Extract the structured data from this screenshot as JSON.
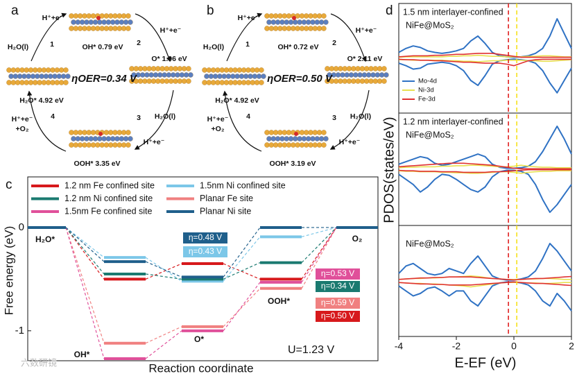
{
  "diagrams": [
    {
      "panel": "a",
      "overpotential": "ηOER=0.34 V",
      "states": [
        "OH* 0.79 eV",
        "O* 1.96 eV",
        "OOH* 3.35 eV",
        "H₂O* 4.92 eV"
      ],
      "steps": [
        "1",
        "2",
        "3",
        "4"
      ],
      "species": [
        "H⁺+e⁻",
        "H₂O(l)",
        "H⁺+e⁻",
        "H₂O(l)",
        "H⁺+e⁻",
        "H⁺+e⁻",
        "+O₂"
      ]
    },
    {
      "panel": "b",
      "overpotential": "ηOER=0.50 V",
      "states": [
        "OH* 0.72 eV",
        "O* 2.11 eV",
        "OOH* 3.19 eV",
        "H₂O* 4.92 eV"
      ],
      "steps": [
        "1",
        "2",
        "3",
        "4"
      ],
      "species": [
        "H⁺+e⁻",
        "H₂O(l)",
        "H⁺+e⁻",
        "H₂O(l)",
        "H⁺+e⁻",
        "H⁺+e⁻",
        "+O₂"
      ]
    }
  ],
  "chart_data": [
    {
      "type": "energy",
      "panel": "c",
      "ylabel": "Free energy (eV)",
      "xlabel": "Reaction coordinate",
      "note": "U=1.23 V",
      "categories": [
        "H₂O*",
        "OH*",
        "O*",
        "OOH*",
        "O₂"
      ],
      "ylim": [
        -1.29,
        0.49
      ],
      "yticks": [
        -1,
        0
      ],
      "series": [
        {
          "name": "1.2 nm Fe confined site",
          "color": "#d7191c",
          "values": [
            0,
            -0.5,
            -0.35,
            -0.5,
            0
          ]
        },
        {
          "name": "1.5nm Ni confined site",
          "color": "#7cc7e8",
          "values": [
            0,
            -0.29,
            -0.52,
            -0.09,
            0
          ]
        },
        {
          "name": "1.2 nm Ni confined site",
          "color": "#1a7a70",
          "values": [
            0,
            -0.45,
            -0.5,
            -0.34,
            0
          ]
        },
        {
          "name": "Planar Fe site",
          "color": "#f08080",
          "values": [
            0,
            -1.12,
            -0.96,
            -0.59,
            0
          ]
        },
        {
          "name": "1.5nm Fe confined site",
          "color": "#e0509a",
          "values": [
            0,
            -1.27,
            -1.0,
            -0.53,
            0
          ]
        },
        {
          "name": "Planar Ni site",
          "color": "#1f5f8b",
          "values": [
            0,
            -0.33,
            -0.48,
            0,
            0
          ]
        }
      ],
      "annotations": [
        {
          "text": "η=0.48 V",
          "color": "#1f5f8b"
        },
        {
          "text": "η=0.43 V",
          "color": "#7cc7e8"
        },
        {
          "text": "η=0.53 V",
          "color": "#e0509a"
        },
        {
          "text": "η=0.34 V",
          "color": "#1a7a70"
        },
        {
          "text": "η=0.59 V",
          "color": "#f08080"
        },
        {
          "text": "η=0.50 V",
          "color": "#d7191c"
        }
      ]
    },
    {
      "type": "pdos",
      "panel": "d",
      "ylabel": "PDOS(states/eV)",
      "xlabel": "E-EF (eV)",
      "xlim": [
        -4,
        2
      ],
      "xticks": [
        -4,
        -2,
        0,
        2
      ],
      "x": [
        -4,
        -3.75,
        -3.5,
        -3.25,
        -3,
        -2.75,
        -2.5,
        -2.25,
        -2,
        -1.75,
        -1.5,
        -1.25,
        -1,
        -0.75,
        -0.5,
        -0.25,
        0,
        0.25,
        0.5,
        0.75,
        1,
        1.25,
        1.5,
        1.75,
        2
      ],
      "vlines": [
        {
          "value": -0.19,
          "color": "#e02020"
        },
        {
          "value": 0.1,
          "color": "#f5e11a"
        }
      ],
      "subplots": [
        {
          "titles": [
            "1.5 nm interlayer-confined",
            "NiFe@MoS₂"
          ],
          "ylim": [
            -1,
            1
          ],
          "legend": true,
          "series": [
            {
              "name": "Mo-4d",
              "color": "#2f72c4",
              "values": [
                0.12,
                0.2,
                0.25,
                0.22,
                0.15,
                0.12,
                0.1,
                0.12,
                0.15,
                0.2,
                0.35,
                0.45,
                0.3,
                0.12,
                0.05,
                0.03,
                0.02,
                0.03,
                0.05,
                0.1,
                0.2,
                0.45,
                0.8,
                0.5,
                0.2
              ],
              "values_down": [
                -0.1,
                -0.15,
                -0.22,
                -0.2,
                -0.12,
                -0.1,
                -0.08,
                -0.1,
                -0.15,
                -0.25,
                -0.45,
                -0.55,
                -0.35,
                -0.12,
                -0.05,
                -0.03,
                -0.02,
                -0.03,
                -0.05,
                -0.1,
                -0.25,
                -0.5,
                -0.7,
                -0.45,
                -0.2
              ]
            },
            {
              "name": "Ni-3d",
              "color": "#e8e050",
              "values": [
                0.02,
                0.03,
                0.03,
                0.03,
                0.03,
                0.03,
                0.03,
                0.04,
                0.04,
                0.05,
                0.05,
                0.06,
                0.05,
                0.04,
                0.04,
                0.03,
                0.03,
                0.03,
                0.04,
                0.04,
                0.05,
                0.05,
                0.04,
                0.03,
                0.03
              ],
              "values_down": [
                -0.03,
                -0.03,
                -0.04,
                -0.04,
                -0.04,
                -0.04,
                -0.04,
                -0.05,
                -0.05,
                -0.06,
                -0.06,
                -0.07,
                -0.06,
                -0.05,
                -0.05,
                -0.04,
                -0.04,
                -0.04,
                -0.05,
                -0.05,
                -0.06,
                -0.06,
                -0.05,
                -0.04,
                -0.03
              ]
            },
            {
              "name": "Fe-3d",
              "color": "#e03030",
              "values": [
                0.03,
                0.04,
                0.05,
                0.05,
                0.05,
                0.06,
                0.06,
                0.07,
                0.08,
                0.08,
                0.09,
                0.1,
                0.1,
                0.1,
                0.08,
                0.06,
                0.04,
                0.02,
                0.02,
                0.02,
                0.02,
                0.02,
                0.02,
                0.02,
                0.02
              ],
              "values_down": [
                -0.02,
                -0.03,
                -0.03,
                -0.04,
                -0.04,
                -0.05,
                -0.05,
                -0.06,
                -0.07,
                -0.08,
                -0.08,
                -0.09,
                -0.1,
                -0.1,
                -0.1,
                -0.12,
                -0.15,
                -0.1,
                -0.05,
                -0.03,
                -0.02,
                -0.02,
                -0.02,
                -0.02,
                -0.02
              ]
            }
          ]
        },
        {
          "titles": [
            "1.2 nm interlayer-confined",
            "NiFe@MoS₂"
          ],
          "ylim": [
            -1,
            1
          ],
          "series": [
            {
              "color": "#2f72c4",
              "values": [
                0.1,
                0.15,
                0.2,
                0.25,
                0.22,
                0.12,
                0.08,
                0.1,
                0.15,
                0.2,
                0.25,
                0.3,
                0.25,
                0.1,
                0.04,
                0.02,
                0.02,
                0.03,
                0.06,
                0.15,
                0.35,
                0.6,
                0.85,
                0.6,
                0.3
              ],
              "values_down": [
                -0.1,
                -0.2,
                -0.3,
                -0.45,
                -0.35,
                -0.2,
                -0.1,
                -0.12,
                -0.2,
                -0.3,
                -0.4,
                -0.45,
                -0.35,
                -0.15,
                -0.05,
                -0.02,
                -0.02,
                -0.04,
                -0.1,
                -0.3,
                -0.6,
                -0.85,
                -0.7,
                -0.5,
                -0.3
              ]
            },
            {
              "color": "#e8e050",
              "values": [
                0.03,
                0.04,
                0.04,
                0.05,
                0.05,
                0.05,
                0.06,
                0.06,
                0.07,
                0.07,
                0.08,
                0.08,
                0.07,
                0.06,
                0.05,
                0.05,
                0.06,
                0.08,
                0.06,
                0.05,
                0.04,
                0.04,
                0.03,
                0.03,
                0.03
              ],
              "values_down": [
                -0.03,
                -0.04,
                -0.04,
                -0.05,
                -0.05,
                -0.05,
                -0.06,
                -0.06,
                -0.07,
                -0.07,
                -0.08,
                -0.08,
                -0.07,
                -0.06,
                -0.05,
                -0.05,
                -0.06,
                -0.08,
                -0.06,
                -0.05,
                -0.04,
                -0.04,
                -0.03,
                -0.03,
                -0.03
              ]
            },
            {
              "color": "#e03030",
              "values": [
                0.05,
                0.06,
                0.07,
                0.08,
                0.09,
                0.1,
                0.11,
                0.12,
                0.12,
                0.12,
                0.11,
                0.1,
                0.09,
                0.08,
                0.06,
                0.04,
                0.02,
                0.01,
                0.01,
                0.01,
                0.01,
                0.01,
                0.01,
                0.01,
                0.01
              ],
              "values_down": [
                -0.02,
                -0.03,
                -0.03,
                -0.04,
                -0.04,
                -0.04,
                -0.05,
                -0.05,
                -0.05,
                -0.06,
                -0.06,
                -0.06,
                -0.06,
                -0.05,
                -0.05,
                -0.04,
                -0.03,
                -0.02,
                -0.01,
                -0.01,
                -0.01,
                -0.01,
                -0.01,
                -0.01,
                -0.01
              ]
            }
          ]
        },
        {
          "titles": [
            "NiFe@MoS₂"
          ],
          "ylim": [
            -1,
            1
          ],
          "series": [
            {
              "color": "#2f72c4",
              "values": [
                0.15,
                0.3,
                0.35,
                0.25,
                0.15,
                0.12,
                0.15,
                0.25,
                0.2,
                0.15,
                0.35,
                0.5,
                0.3,
                0.1,
                0.04,
                0.02,
                0.02,
                0.04,
                0.08,
                0.2,
                0.45,
                0.75,
                0.6,
                0.4,
                0.2
              ],
              "values_down": [
                -0.1,
                -0.2,
                -0.3,
                -0.25,
                -0.15,
                -0.12,
                -0.2,
                -0.3,
                -0.2,
                -0.2,
                -0.4,
                -0.5,
                -0.3,
                -0.1,
                -0.04,
                -0.02,
                -0.02,
                -0.04,
                -0.08,
                -0.2,
                -0.4,
                -0.5,
                -0.25,
                -0.4,
                -0.6
              ]
            },
            {
              "color": "#e8e050",
              "values": [
                0.03,
                0.04,
                0.05,
                0.05,
                0.06,
                0.06,
                0.07,
                0.08,
                0.08,
                0.09,
                0.1,
                0.09,
                0.07,
                0.05,
                0.04,
                0.03,
                0.03,
                0.03,
                0.04,
                0.04,
                0.05,
                0.05,
                0.04,
                0.03,
                0.03
              ],
              "values_down": [
                -0.03,
                -0.04,
                -0.05,
                -0.05,
                -0.06,
                -0.06,
                -0.07,
                -0.08,
                -0.09,
                -0.1,
                -0.12,
                -0.1,
                -0.08,
                -0.06,
                -0.04,
                -0.03,
                -0.03,
                -0.03,
                -0.04,
                -0.04,
                -0.05,
                -0.05,
                -0.04,
                -0.03,
                -0.03
              ]
            },
            {
              "color": "#e03030",
              "values": [
                0.03,
                0.04,
                0.05,
                0.06,
                0.06,
                0.07,
                0.07,
                0.08,
                0.08,
                0.08,
                0.08,
                0.07,
                0.06,
                0.05,
                0.04,
                0.03,
                0.02,
                0.03,
                0.04,
                0.05,
                0.05,
                0.06,
                0.07,
                0.08,
                0.09
              ],
              "values_down": [
                -0.03,
                -0.04,
                -0.05,
                -0.06,
                -0.06,
                -0.07,
                -0.07,
                -0.08,
                -0.08,
                -0.08,
                -0.08,
                -0.07,
                -0.06,
                -0.05,
                -0.04,
                -0.03,
                -0.02,
                -0.03,
                -0.04,
                -0.05,
                -0.05,
                -0.06,
                -0.07,
                -0.08,
                -0.09
              ]
            }
          ]
        }
      ]
    }
  ],
  "watermark": "六数研镜"
}
